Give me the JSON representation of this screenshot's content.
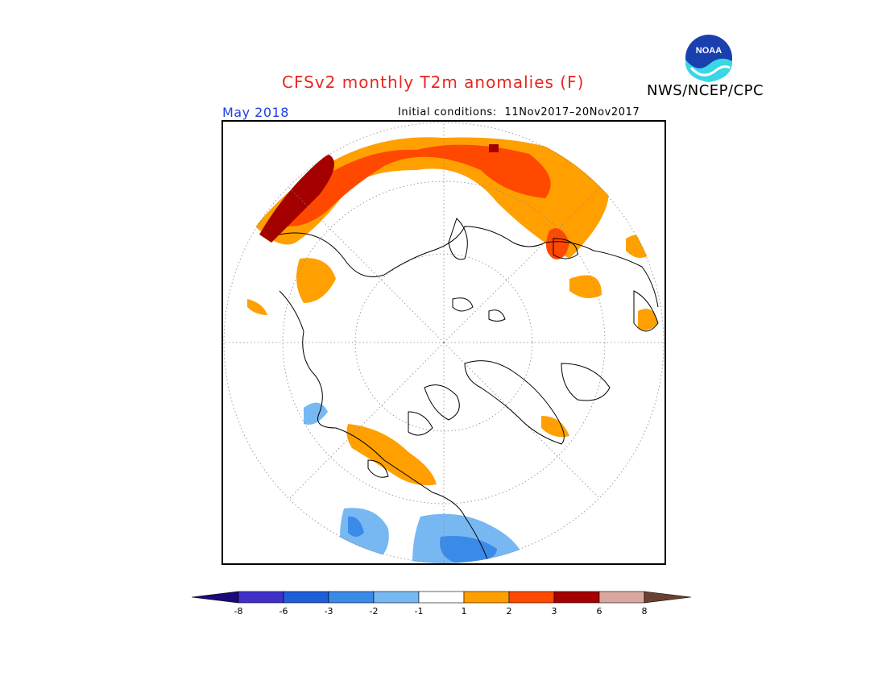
{
  "header": {
    "title": "CFSv2 monthly T2m anomalies (F)",
    "organization": "NWS/NCEP/CPC",
    "valid_month": "May 2018",
    "initial_conditions_label": "Initial conditions:",
    "initial_conditions_range": "11Nov2017–20Nov2017"
  },
  "logo": {
    "text": "NOAA",
    "icon": "noaa-logo-icon"
  },
  "map": {
    "projection": "north-polar-stereographic",
    "features": [
      "coastline",
      "graticule-dotted",
      "anomaly-shading"
    ]
  },
  "colorbar": {
    "tick_labels": [
      "-8",
      "-6",
      "-3",
      "-2",
      "-1",
      "1",
      "2",
      "3",
      "6",
      "8"
    ],
    "colors": [
      "#1a0a7a",
      "#4030c8",
      "#1e5ed8",
      "#3a8ae8",
      "#78b8f2",
      "#ffffff",
      "#ffa000",
      "#ff4800",
      "#a40000",
      "#d8a8a0",
      "#6b4030"
    ]
  },
  "colors": {
    "title": "#e8261e",
    "month": "#1f3fe0"
  }
}
